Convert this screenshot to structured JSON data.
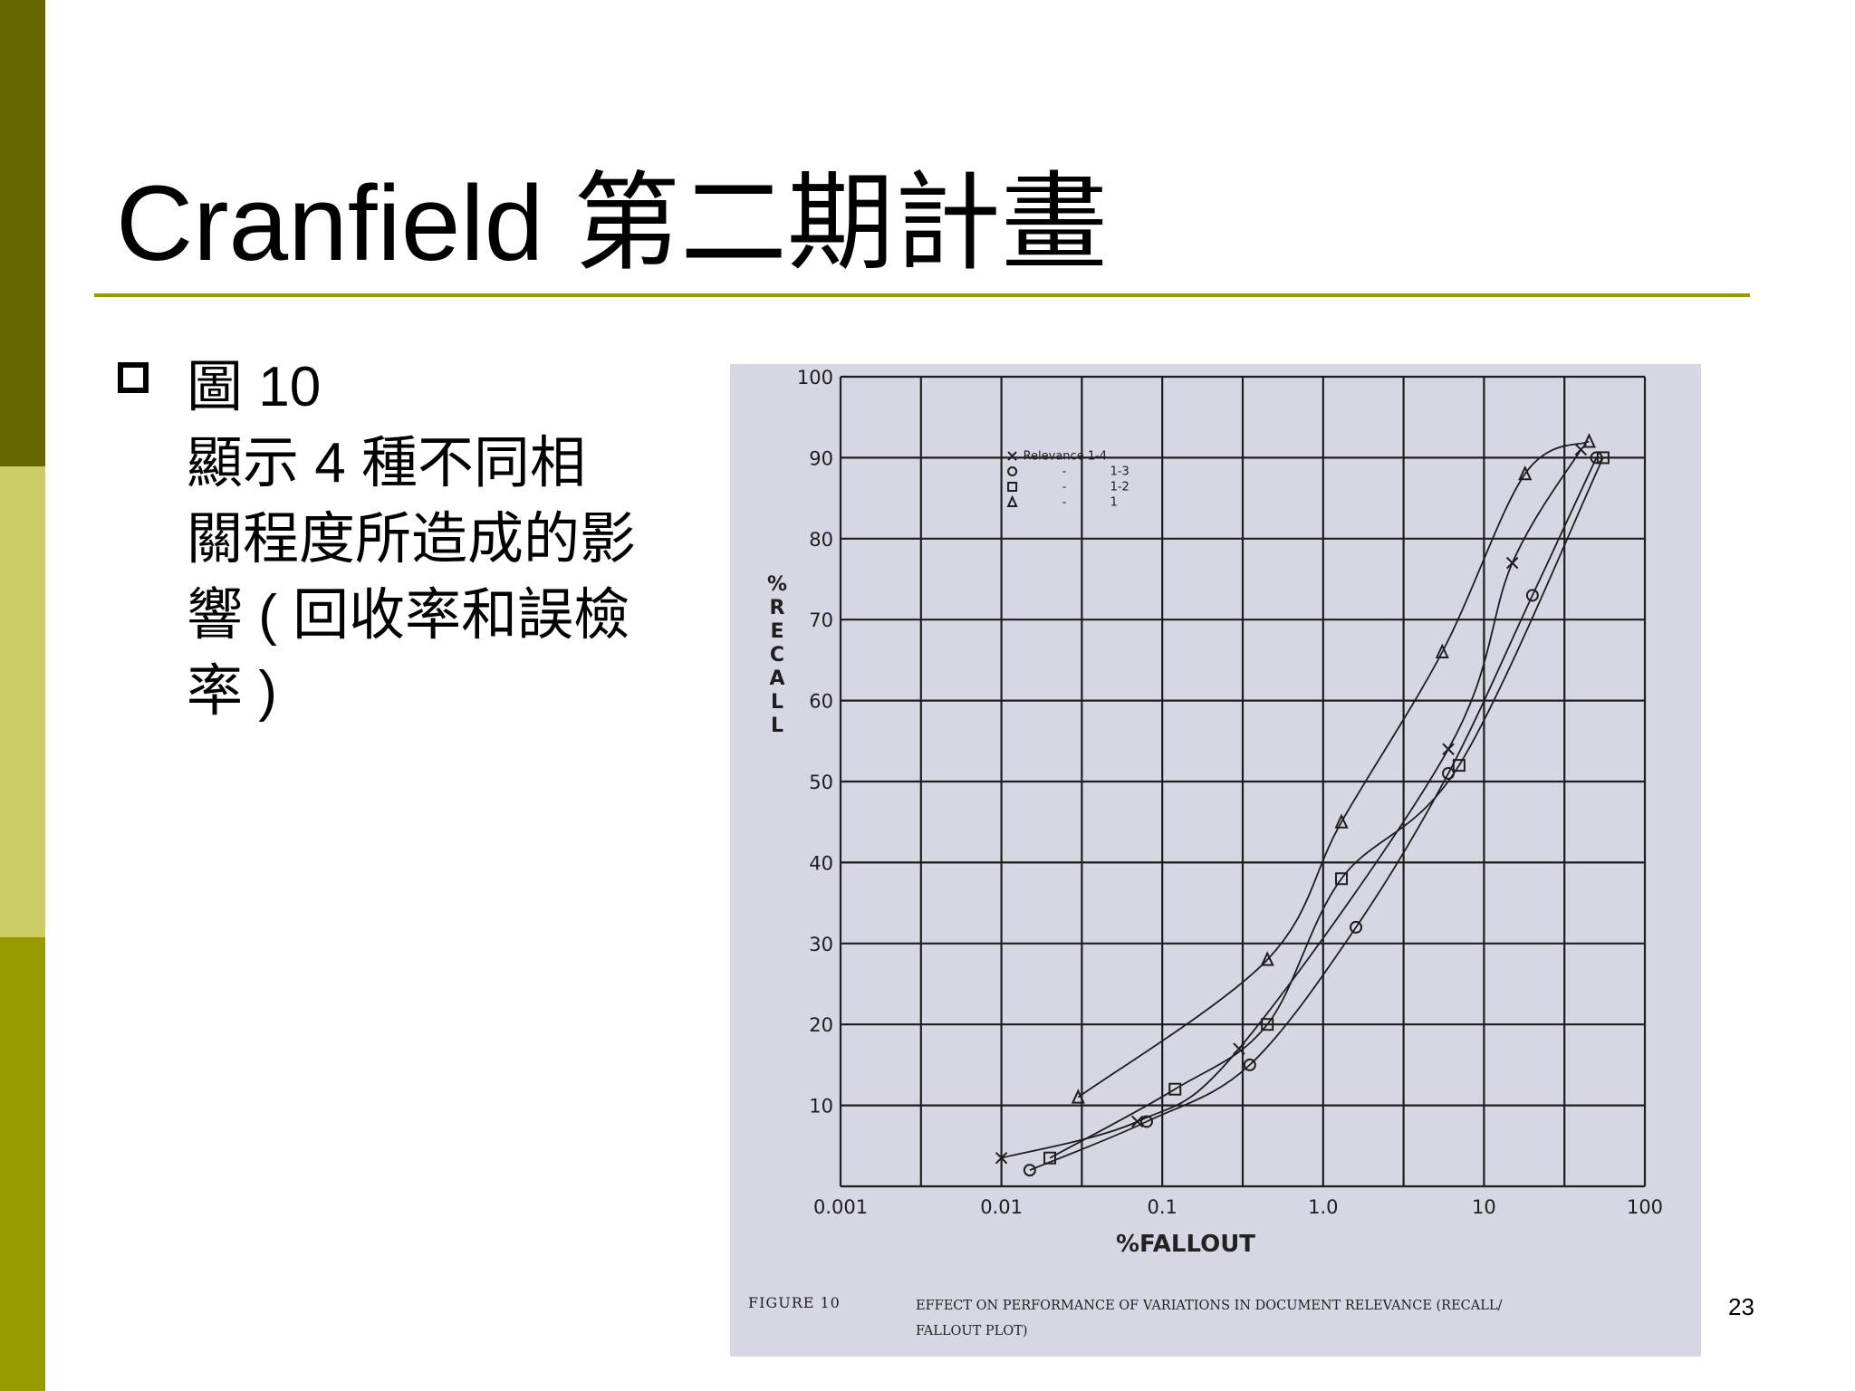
{
  "slide": {
    "title": "Cranfield 第二期計畫",
    "bullet": "圖 10",
    "description_lines": [
      "顯示 4 種不同相",
      "關程度所造成的影",
      "響 ( 回收率和誤檢",
      "率 )"
    ],
    "slide_number": "23",
    "colors": {
      "bar_dark": "#666600",
      "bar_light": "#cccc66",
      "bar_mid": "#999900",
      "rule": "#999900"
    }
  },
  "chart_data": {
    "type": "line",
    "x_scale": "log",
    "xlim": [
      0.001,
      100
    ],
    "ylim": [
      0,
      100
    ],
    "x_ticks": [
      "0.001",
      "0.01",
      "0.1",
      "1.0",
      "10",
      "100"
    ],
    "y_ticks": [
      "10",
      "20",
      "30",
      "40",
      "50",
      "60",
      "70",
      "80",
      "90",
      "100"
    ],
    "y_label_chars": [
      "%",
      "R",
      "E",
      "C",
      "A",
      "L",
      "L"
    ],
    "xlabel": "%FALLOUT",
    "grid": true,
    "legend": {
      "placement": "top-left",
      "entries": [
        {
          "marker": "x",
          "text": "Relevance 1-4"
        },
        {
          "marker": "o",
          "text": "1-3"
        },
        {
          "marker": "s",
          "text": "1-2"
        },
        {
          "marker": "^",
          "text": "1"
        }
      ],
      "dash": "-"
    },
    "caption": {
      "label": "FIGURE 10",
      "line1": "EFFECT ON PERFORMANCE OF VARIATIONS IN DOCUMENT RELEVANCE (RECALL/",
      "line2": "FALLOUT PLOT)"
    },
    "series": [
      {
        "marker": "x",
        "points": [
          [
            0.01,
            3.5
          ],
          [
            0.07,
            8
          ],
          [
            0.3,
            17
          ],
          [
            6,
            54
          ],
          [
            15,
            77
          ],
          [
            40,
            91
          ]
        ]
      },
      {
        "marker": "o",
        "points": [
          [
            0.015,
            2
          ],
          [
            0.08,
            8
          ],
          [
            0.35,
            15
          ],
          [
            1.6,
            32
          ],
          [
            6,
            51
          ],
          [
            20,
            73
          ],
          [
            50,
            90
          ]
        ]
      },
      {
        "marker": "s",
        "points": [
          [
            0.02,
            3.5
          ],
          [
            0.12,
            12
          ],
          [
            0.45,
            20
          ],
          [
            1.3,
            38
          ],
          [
            7,
            52
          ],
          [
            55,
            90
          ]
        ]
      },
      {
        "marker": "^",
        "points": [
          [
            0.03,
            11
          ],
          [
            0.45,
            28
          ],
          [
            1.3,
            45
          ],
          [
            5.5,
            66
          ],
          [
            18,
            88
          ],
          [
            45,
            92
          ]
        ]
      }
    ]
  }
}
